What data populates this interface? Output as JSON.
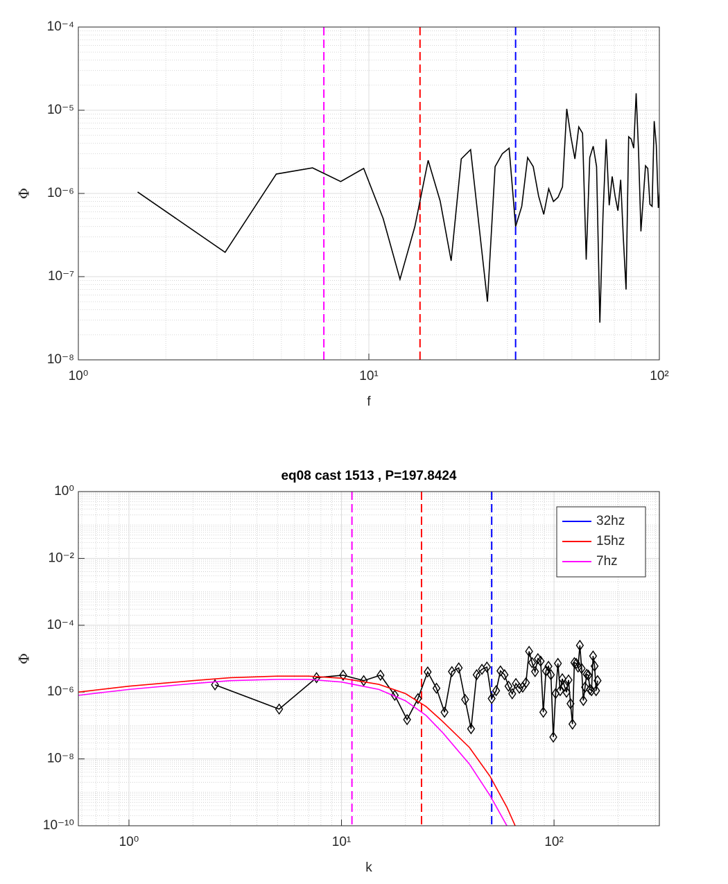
{
  "chart_data": [
    {
      "type": "line",
      "xscale": "log",
      "yscale": "log",
      "xlabel": "f",
      "ylabel": "Φ",
      "grid": true,
      "minor_grid": true,
      "xlim": [
        1,
        100
      ],
      "ylim": [
        1e-08,
        0.0001
      ],
      "xticks": [
        {
          "value": 1,
          "label": "10⁰"
        },
        {
          "value": 10,
          "label": "10¹"
        },
        {
          "value": 100,
          "label": "10²"
        }
      ],
      "yticks": [
        {
          "value": 1e-08,
          "label": "10⁻⁸"
        },
        {
          "value": 1e-07,
          "label": "10⁻⁷"
        },
        {
          "value": 1e-06,
          "label": "10⁻⁶"
        },
        {
          "value": 1e-05,
          "label": "10⁻⁵"
        },
        {
          "value": 0.0001,
          "label": "10⁻⁴"
        }
      ],
      "series": [
        {
          "color": "#000000",
          "x": [
            1.6,
            3.2,
            4.8,
            6.4,
            8.0,
            9.6,
            11.2,
            12.8,
            14.4,
            16.0,
            17.6,
            19.2,
            20.8,
            22.4,
            24.0,
            25.6,
            27.2,
            28.8,
            30.4,
            32.0,
            33.6,
            35.2,
            36.8,
            38.4,
            40.0,
            41.6,
            43.2,
            44.8,
            46.4,
            48.0,
            49.6,
            51.2,
            52.8,
            54.4,
            56.0,
            57.6,
            59.2,
            60.8,
            62.4,
            64.0,
            65.6,
            67.2,
            68.8,
            70.4,
            72.0,
            73.6,
            75.2,
            76.8,
            78.4,
            80.0,
            81.6,
            83.2,
            84.8,
            86.4,
            88.0,
            89.6,
            91.2,
            92.8,
            94.4,
            96.0,
            97.6,
            99.2,
            100.8
          ],
          "values": [
            1.04e-06,
            1.96e-07,
            1.71e-06,
            2.03e-06,
            1.39e-06,
            2e-06,
            5e-07,
            9.3e-08,
            4e-07,
            2.5e-06,
            8.1e-07,
            1.55e-07,
            2.6e-06,
            3.36e-06,
            3.8e-07,
            5e-08,
            2.1e-06,
            3e-06,
            3.5e-06,
            4e-07,
            7e-07,
            2.7e-06,
            2.1e-06,
            9.3e-07,
            5.6e-07,
            1.14e-06,
            8e-07,
            9e-07,
            1.2e-06,
            1.04e-05,
            4.8e-06,
            2.6e-06,
            6.3e-06,
            5.3e-06,
            1.6e-07,
            2.7e-06,
            3.7e-06,
            2.1e-06,
            2.8e-08,
            5.7e-07,
            4.5e-06,
            7.2e-07,
            1.6e-06,
            9.3e-07,
            6.2e-07,
            1.46e-06,
            2.8e-07,
            7e-08,
            4.8e-06,
            4.5e-06,
            3.5e-06,
            1.6e-05,
            3.2e-06,
            3.5e-07,
            8.7e-07,
            2.15e-06,
            2e-06,
            7.4e-07,
            7e-07,
            7.4e-06,
            3.8e-06,
            6.7e-07,
            1.4e-06
          ]
        }
      ],
      "vlines": [
        {
          "x": 7,
          "color": "#ff00ff"
        },
        {
          "x": 15,
          "color": "#ff0000"
        },
        {
          "x": 32,
          "color": "#0000ff"
        }
      ]
    },
    {
      "type": "line",
      "title": "eq08 cast 1513 , P=197.8424",
      "xscale": "log",
      "yscale": "log",
      "xlabel": "k",
      "ylabel": "Φ",
      "grid": true,
      "minor_grid": true,
      "legend": "top-right",
      "xlim": [
        0.578,
        313
      ],
      "ylim": [
        1e-10,
        1
      ],
      "xticks": [
        {
          "value": 1,
          "label": "10⁰"
        },
        {
          "value": 10,
          "label": "10¹"
        },
        {
          "value": 100,
          "label": "10²"
        }
      ],
      "yticks": [
        {
          "value": 1e-10,
          "label": "10⁻¹⁰"
        },
        {
          "value": 1e-08,
          "label": "10⁻⁸"
        },
        {
          "value": 1e-06,
          "label": "10⁻⁶"
        },
        {
          "value": 0.0001,
          "label": "10⁻⁴"
        },
        {
          "value": 0.01,
          "label": "10⁻²"
        },
        {
          "value": 1,
          "label": "10⁰"
        }
      ],
      "series": [
        {
          "color": "#000000",
          "marker": "diamond",
          "x": [
            2.54,
            5.09,
            7.63,
            10.18,
            12.72,
            15.26,
            17.81,
            20.35,
            22.9,
            25.44,
            27.98,
            30.53,
            33.07,
            35.62,
            38.16,
            40.7,
            43.25,
            45.79,
            48.34,
            50.88,
            53.42,
            55.97,
            58.51,
            61.06,
            63.6,
            66.14,
            68.69,
            71.23,
            73.78,
            76.32,
            78.86,
            81.41,
            83.95,
            86.5,
            89.04,
            91.58,
            94.13,
            96.67,
            99.22,
            101.76,
            104.3,
            106.85,
            109.39,
            111.94,
            114.48,
            117.02,
            119.57,
            122.11,
            124.66,
            127.2,
            129.74,
            132.29,
            134.83,
            137.38,
            139.92,
            142.46,
            145.01,
            147.55,
            150.1,
            152.64,
            155.18,
            157.73,
            160.27
          ],
          "values": [
            1.65e-06,
            3.1e-07,
            2.7e-06,
            3.2e-06,
            2.2e-06,
            3.2e-06,
            8e-07,
            1.5e-07,
            6.4e-07,
            4e-06,
            1.3e-06,
            2.5e-07,
            4.1e-06,
            5.3e-06,
            6e-07,
            8e-08,
            3.3e-06,
            4.8e-06,
            5.6e-06,
            6.4e-07,
            1.1e-06,
            4.3e-06,
            3.3e-06,
            1.5e-06,
            8.9e-07,
            1.8e-06,
            1.3e-06,
            1.4e-06,
            1.9e-06,
            1.65e-05,
            7.6e-06,
            4.1e-06,
            1e-05,
            8.4e-06,
            2.5e-07,
            4.3e-06,
            5.9e-06,
            3.3e-06,
            4.5e-08,
            9.1e-07,
            7.2e-06,
            1.1e-06,
            2.5e-06,
            1.5e-06,
            9.9e-07,
            2.3e-06,
            4.5e-07,
            1.1e-07,
            7.6e-06,
            7.2e-06,
            5.6e-06,
            2.5e-05,
            5.1e-06,
            5.6e-07,
            1.4e-06,
            3.4e-06,
            3.2e-06,
            1.2e-06,
            1.1e-06,
            1.2e-05,
            6e-06,
            1.1e-06,
            2.2e-06
          ]
        },
        {
          "color": "#ff0000",
          "x": [
            0.578,
            1,
            2,
            3,
            5,
            7,
            10,
            15,
            20,
            25,
            30,
            40,
            50,
            60,
            70
          ],
          "values": [
            1e-06,
            1.5e-06,
            2.2e-06,
            2.7e-06,
            3e-06,
            3e-06,
            2.6e-06,
            1.7e-06,
            9e-07,
            3.7e-07,
            1.3e-07,
            2.2e-08,
            3e-09,
            3.6e-10,
            4e-11
          ]
        },
        {
          "color": "#ff00ff",
          "x": [
            0.578,
            1,
            2,
            3,
            5,
            7,
            10,
            15,
            20,
            25,
            30,
            40,
            50,
            60,
            70
          ],
          "values": [
            8e-07,
            1.2e-06,
            1.8e-06,
            2.2e-06,
            2.4e-06,
            2.4e-06,
            2e-06,
            1.2e-06,
            5.5e-07,
            2e-07,
            6e-08,
            7e-09,
            8e-10,
            1e-10,
            1.2e-11
          ]
        }
      ],
      "vlines": [
        {
          "name": "32hz",
          "x": 50.9,
          "color": "#0000ff"
        },
        {
          "name": "15hz",
          "x": 23.8,
          "color": "#ff0000"
        },
        {
          "name": "7hz",
          "x": 11.2,
          "color": "#ff00ff"
        }
      ]
    }
  ]
}
